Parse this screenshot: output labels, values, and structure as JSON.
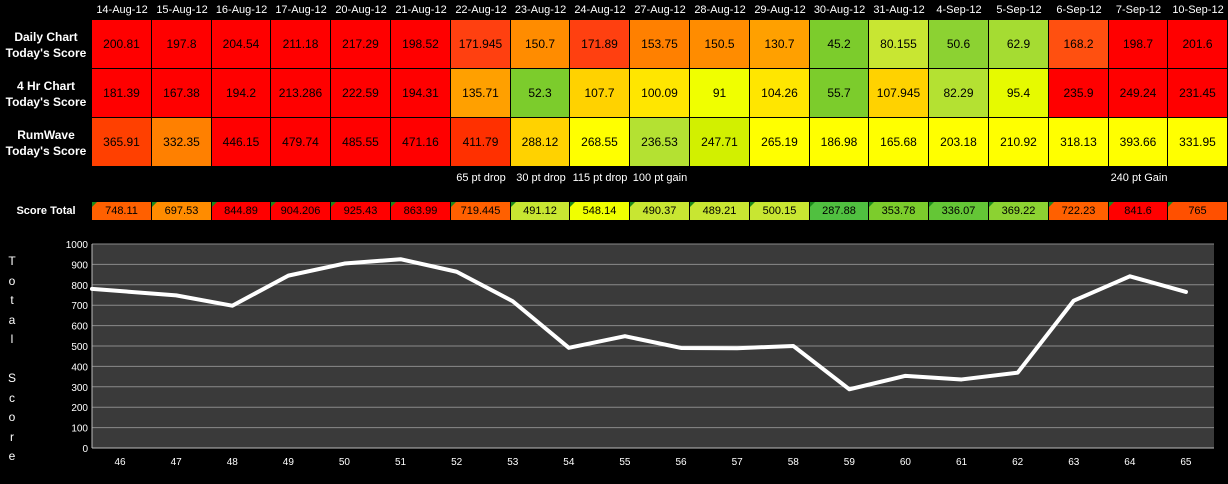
{
  "dates": [
    "14-Aug-12",
    "15-Aug-12",
    "16-Aug-12",
    "17-Aug-12",
    "20-Aug-12",
    "21-Aug-12",
    "22-Aug-12",
    "23-Aug-12",
    "24-Aug-12",
    "27-Aug-12",
    "28-Aug-12",
    "29-Aug-12",
    "30-Aug-12",
    "31-Aug-12",
    "4-Sep-12",
    "5-Sep-12",
    "6-Sep-12",
    "7-Sep-12",
    "10-Sep-12"
  ],
  "rows": [
    {
      "label_lines": [
        "Daily Chart",
        "Today's Score"
      ],
      "values": [
        "200.81",
        "197.8",
        "204.54",
        "211.18",
        "217.29",
        "198.52",
        "171.945",
        "150.7",
        "171.89",
        "153.75",
        "150.5",
        "130.7",
        "45.2",
        "80.155",
        "50.6",
        "62.9",
        "168.2",
        "198.7",
        "201.6"
      ],
      "colors": [
        "#ff0000",
        "#ff0000",
        "#ff0000",
        "#ff0000",
        "#ff0000",
        "#ff0000",
        "#ff4010",
        "#ff8c00",
        "#ff4010",
        "#ff8000",
        "#ff8c00",
        "#ffa000",
        "#7ccc2c",
        "#c8e632",
        "#8cd232",
        "#a5dc32",
        "#ff5010",
        "#ff0000",
        "#ff0000"
      ]
    },
    {
      "label_lines": [
        "4 Hr Chart",
        "Today's Score"
      ],
      "values": [
        "181.39",
        "167.38",
        "194.2",
        "213.286",
        "222.59",
        "194.31",
        "135.71",
        "52.3",
        "107.7",
        "100.09",
        "91",
        "104.26",
        "55.7",
        "107.945",
        "82.29",
        "95.4",
        "235.9",
        "249.24",
        "231.45"
      ],
      "colors": [
        "#ff0000",
        "#ff0000",
        "#ff0000",
        "#ff0000",
        "#ff0000",
        "#ff0000",
        "#ffa000",
        "#7ccc2c",
        "#ffd200",
        "#ffe600",
        "#f0ff00",
        "#ffe600",
        "#7ccc2c",
        "#ffd200",
        "#b4e132",
        "#e6fa00",
        "#ff0000",
        "#ff0000",
        "#ff0000"
      ]
    },
    {
      "label_lines": [
        "RumWave",
        "Today's Score"
      ],
      "values": [
        "365.91",
        "332.35",
        "446.15",
        "479.74",
        "485.55",
        "471.16",
        "411.79",
        "288.12",
        "268.55",
        "236.53",
        "247.71",
        "265.19",
        "186.98",
        "165.68",
        "203.18",
        "210.92",
        "318.13",
        "393.66",
        "331.95"
      ],
      "colors": [
        "#ff4000",
        "#ff8000",
        "#ff0000",
        "#ff0000",
        "#ff0000",
        "#ff0000",
        "#ff3000",
        "#ffd200",
        "#ffff00",
        "#b4e132",
        "#d2f000",
        "#ffff00",
        "#ffff00",
        "#ffff00",
        "#ffff00",
        "#ffff00",
        "#ffff00",
        "#ffff00",
        "#ffff00"
      ]
    }
  ],
  "notes": [
    {
      "col": 6,
      "text": "65 pt drop"
    },
    {
      "col": 7,
      "text": "30 pt drop"
    },
    {
      "col": 8,
      "text": "115 pt drop"
    },
    {
      "col": 9,
      "text": "100 pt gain"
    },
    {
      "col": 17,
      "text": "240 pt Gain"
    }
  ],
  "totals": {
    "label": "Score Total",
    "values": [
      "748.11",
      "697.53",
      "844.89",
      "904.206",
      "925.43",
      "863.99",
      "719.445",
      "491.12",
      "548.14",
      "490.37",
      "489.21",
      "500.15",
      "287.88",
      "353.78",
      "336.07",
      "369.22",
      "722.23",
      "841.6",
      "765"
    ],
    "colors": [
      "#ff6000",
      "#ff8c00",
      "#ff0000",
      "#ff0000",
      "#ff0000",
      "#ff0000",
      "#ff6000",
      "#c8e632",
      "#f0ff00",
      "#c8e632",
      "#c8e632",
      "#c8e632",
      "#50c040",
      "#7ccc2c",
      "#64c636",
      "#8cd232",
      "#ff6000",
      "#ff0000",
      "#ff5000"
    ]
  },
  "axis_title_chars": [
    "T",
    "o",
    "t",
    "a",
    "l",
    "",
    "S",
    "c",
    "o",
    "r",
    "e"
  ],
  "chart_data": {
    "type": "line",
    "x": [
      46,
      47,
      48,
      49,
      50,
      51,
      52,
      53,
      54,
      55,
      56,
      57,
      58,
      59,
      60,
      61,
      62,
      63,
      64,
      65
    ],
    "series": [
      {
        "values": [
          780,
          748.11,
          697.53,
          844.89,
          904.206,
          925.43,
          863.99,
          719.445,
          491.12,
          548.14,
          490.37,
          489.21,
          500.15,
          287.88,
          353.78,
          336.07,
          369.22,
          722.23,
          841.6,
          765
        ]
      }
    ],
    "ylim": [
      0,
      1000
    ],
    "yticks": [
      0,
      100,
      200,
      300,
      400,
      500,
      600,
      700,
      800,
      900,
      1000
    ],
    "grid": true,
    "line_color": "#ffffff",
    "plot_background": "#3a3a3a"
  }
}
